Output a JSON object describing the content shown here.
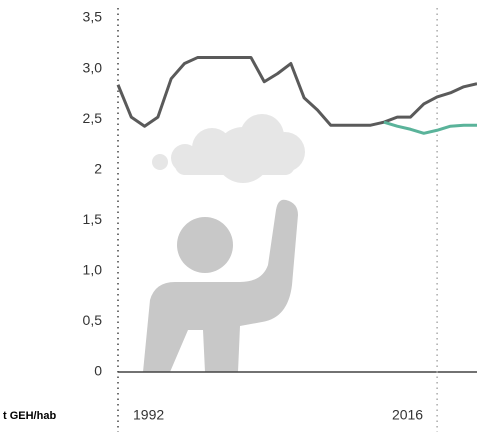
{
  "chart_data": {
    "type": "line",
    "y_unit_label": "t GEH/hab",
    "x": [
      1992,
      1993,
      1994,
      1995,
      1996,
      1997,
      1998,
      1999,
      2000,
      2001,
      2002,
      2003,
      2004,
      2005,
      2006,
      2007,
      2008,
      2009,
      2010,
      2011,
      2012,
      2013,
      2014,
      2015,
      2016,
      2017,
      2018,
      2019
    ],
    "series": [
      {
        "color": "#5a5a5a",
        "values": [
          2.84,
          2.52,
          2.43,
          2.52,
          2.9,
          3.05,
          3.11,
          3.11,
          3.11,
          3.11,
          3.11,
          2.87,
          2.95,
          3.05,
          2.71,
          2.59,
          2.44,
          2.44,
          2.44,
          2.44,
          2.47,
          2.52,
          2.52,
          2.65,
          2.72,
          2.76,
          2.82,
          2.85
        ]
      },
      {
        "color": "#5ab39a",
        "values": [
          null,
          null,
          null,
          null,
          null,
          null,
          null,
          null,
          null,
          null,
          null,
          null,
          null,
          null,
          null,
          null,
          null,
          null,
          null,
          null,
          2.47,
          2.43,
          2.4,
          2.36,
          2.39,
          2.43,
          2.44,
          2.44
        ]
      }
    ],
    "xlim": [
      1992,
      2019
    ],
    "xticks": [
      1992,
      2016
    ],
    "ylim": [
      0,
      3.5
    ],
    "yticks": [
      0,
      {
        "value": 0.5,
        "label": "0,5"
      },
      {
        "value": 1,
        "label": "1,0"
      },
      {
        "value": 1.5,
        "label": "1,5"
      },
      2,
      {
        "value": 2.5,
        "label": "2,5"
      },
      {
        "value": 3,
        "label": "3,0"
      },
      {
        "value": 3.5,
        "label": "3,5"
      }
    ]
  }
}
